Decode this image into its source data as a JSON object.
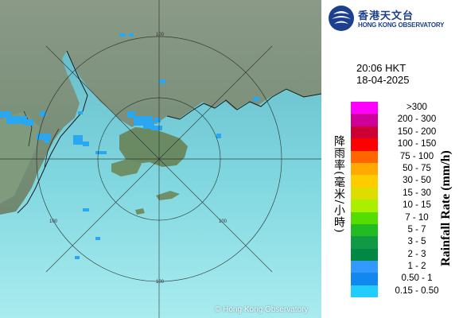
{
  "logo": {
    "name_zh": "香港天文台",
    "name_en": "HONG KONG OBSERVATORY"
  },
  "timestamp": {
    "time": "20:06 HKT",
    "date": "18-04-2025"
  },
  "legend": {
    "title_en": "Rainfall Rate (mm/h)",
    "title_zh": "降雨率(毫米/小時)",
    "items": [
      {
        "label": ">300",
        "color": "#ff00ff"
      },
      {
        "label": "200 - 300",
        "color": "#cc0099"
      },
      {
        "label": "150 - 200",
        "color": "#cc0033"
      },
      {
        "label": "100 - 150",
        "color": "#ff0000"
      },
      {
        "label": "75 - 100",
        "color": "#ff6600"
      },
      {
        "label": "50 - 75",
        "color": "#ffaa00"
      },
      {
        "label": "30 - 50",
        "color": "#ffcc00"
      },
      {
        "label": "15 - 30",
        "color": "#dddd00"
      },
      {
        "label": "10 - 15",
        "color": "#aaee00"
      },
      {
        "label": "7 - 10",
        "color": "#55dd00"
      },
      {
        "label": "5 - 7",
        "color": "#22bb22"
      },
      {
        "label": "3 - 5",
        "color": "#119944"
      },
      {
        "label": "2 - 3",
        "color": "#008844"
      },
      {
        "label": "1 - 2",
        "color": "#3399ff"
      },
      {
        "label": "0.50 - 1",
        "color": "#1188ee"
      },
      {
        "label": "0.15 - 0.50",
        "color": "#22ccff"
      }
    ]
  },
  "map": {
    "range_labels": [
      "100",
      "100",
      "100",
      "100"
    ],
    "copyright": "© Hong Kong Observatory",
    "colors": {
      "sea": "#7fd6df",
      "land": "#6e8a6a",
      "rain": "#2aa7ee"
    }
  }
}
